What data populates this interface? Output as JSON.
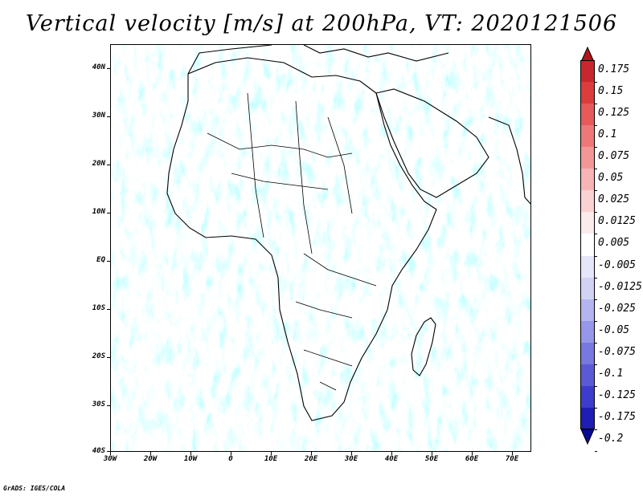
{
  "title": "Vertical velocity [m/s] at 200hPa, VT: 2020121506",
  "footer": "GrADS: IGES/COLA",
  "map": {
    "lat_labels": [
      "40N",
      "30N",
      "20N",
      "10N",
      "EQ",
      "10S",
      "20S",
      "30S",
      "40S"
    ],
    "lon_labels": [
      "30W",
      "20W",
      "10W",
      "0",
      "10E",
      "20E",
      "30E",
      "40E",
      "50E",
      "60E",
      "70E"
    ]
  },
  "colorbar": {
    "labels": [
      "0.175",
      "0.15",
      "0.125",
      "0.1",
      "0.075",
      "0.05",
      "0.025",
      "0.0125",
      "0.005",
      "-0.005",
      "-0.0125",
      "-0.025",
      "-0.05",
      "-0.075",
      "-0.1",
      "-0.125",
      "-0.175",
      "-0.2"
    ],
    "colors": [
      "#b4141e",
      "#c8282d",
      "#dc3c3c",
      "#e65a5a",
      "#ee7878",
      "#f39696",
      "#f7b4b4",
      "#fad2d2",
      "#fcebeb",
      "#ffffff",
      "#e6e6fa",
      "#d2d2f5",
      "#b4b4f0",
      "#9696eb",
      "#7878e1",
      "#5a5ad7",
      "#3c3ccd",
      "#1e1eb4",
      "#0a0a96"
    ]
  }
}
